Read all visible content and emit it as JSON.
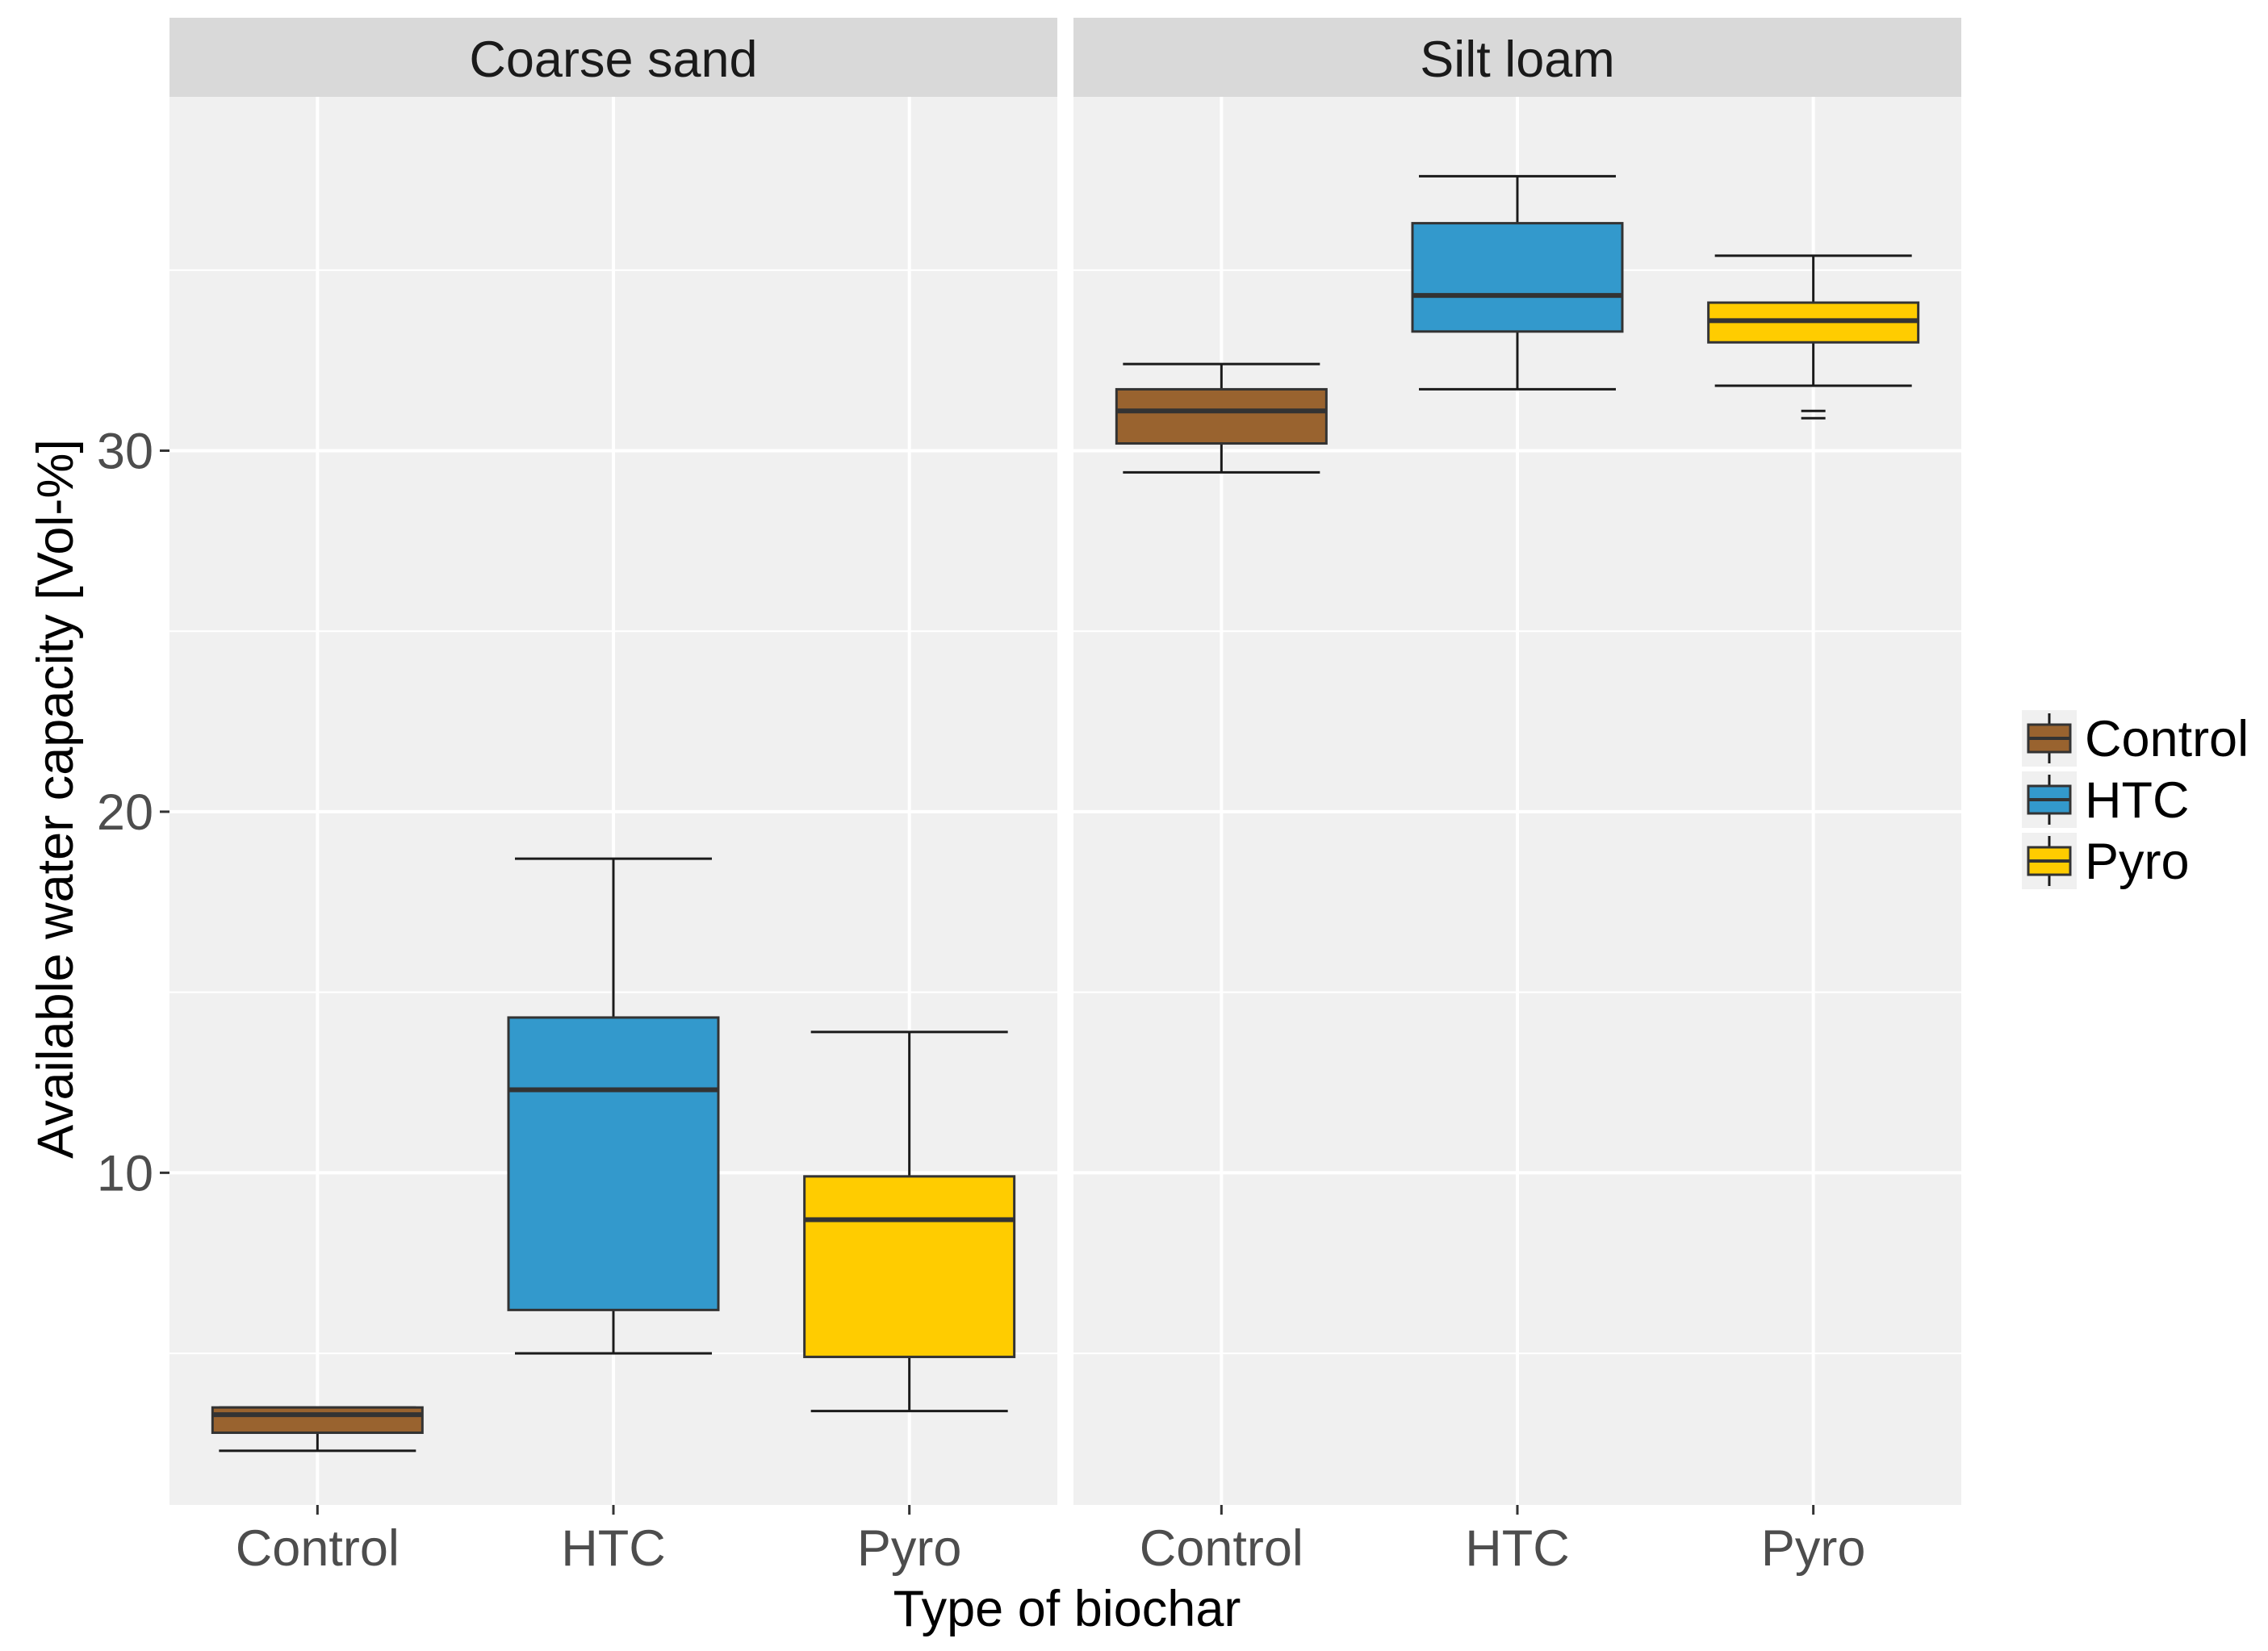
{
  "chart_data": {
    "type": "boxplot",
    "title": "",
    "xlabel": "Type of biochar",
    "ylabel": "Available water capacity [Vol-%]",
    "ylim": [
      0.8,
      39.8
    ],
    "yticks": [
      10,
      20,
      30
    ],
    "ytick_labels": [
      "10",
      "20",
      "30"
    ],
    "categories": [
      "Control",
      "HTC",
      "Pyro"
    ],
    "legend": {
      "position": "right",
      "entries": [
        {
          "label": "Control",
          "color": "#99632f"
        },
        {
          "label": "HTC",
          "color": "#3399cc"
        },
        {
          "label": "Pyro",
          "color": "#ffcc00"
        }
      ]
    },
    "panels": [
      {
        "name": "Coarse sand",
        "boxes": [
          {
            "category": "Control",
            "whisker_low": 2.3,
            "q1": 2.8,
            "median": 3.3,
            "q3": 3.5,
            "whisker_high": 3.5,
            "outliers": []
          },
          {
            "category": "HTC",
            "whisker_low": 5.0,
            "q1": 6.2,
            "median": 12.3,
            "q3": 14.3,
            "whisker_high": 18.7,
            "outliers": []
          },
          {
            "category": "Pyro",
            "whisker_low": 3.4,
            "q1": 4.9,
            "median": 8.7,
            "q3": 9.9,
            "whisker_high": 13.9,
            "outliers": []
          }
        ]
      },
      {
        "name": "Silt loam",
        "boxes": [
          {
            "category": "Control",
            "whisker_low": 29.4,
            "q1": 30.2,
            "median": 31.1,
            "q3": 31.7,
            "whisker_high": 32.4,
            "outliers": []
          },
          {
            "category": "HTC",
            "whisker_low": 31.7,
            "q1": 33.3,
            "median": 34.3,
            "q3": 36.3,
            "whisker_high": 37.6,
            "outliers": []
          },
          {
            "category": "Pyro",
            "whisker_low": 31.8,
            "q1": 33.0,
            "median": 33.6,
            "q3": 34.1,
            "whisker_high": 35.4,
            "outliers": [
              31.1,
              30.9
            ]
          }
        ]
      }
    ]
  }
}
